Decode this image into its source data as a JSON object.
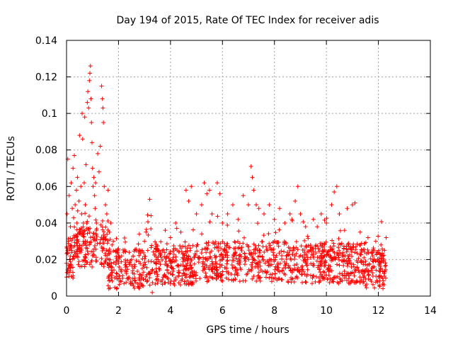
{
  "chart_data": {
    "type": "scatter",
    "title": "Day 194 of 2015, Rate Of TEC Index for receiver adis",
    "xlabel": "GPS time / hours",
    "ylabel": "ROTI / TECUs",
    "xlim": [
      0,
      14
    ],
    "ylim": [
      0,
      0.14
    ],
    "x_ticks": [
      0,
      2,
      4,
      6,
      8,
      10,
      12,
      14
    ],
    "x_tick_labels": [
      "0",
      "2",
      "4",
      "6",
      "8",
      "10",
      "12",
      "14"
    ],
    "y_ticks": [
      0,
      0.02,
      0.04,
      0.06,
      0.08,
      0.1,
      0.12,
      0.14
    ],
    "y_tick_labels": [
      "0",
      "0.02",
      "0.04",
      "0.06",
      "0.08",
      "0.1",
      "0.12",
      "0.14"
    ],
    "grid": true,
    "marker": "+",
    "marker_color": "#ff0000",
    "series": [
      {
        "name": "ROTI",
        "points": [
          [
            0.0,
            0.018
          ],
          [
            0.02,
            0.045
          ],
          [
            0.05,
            0.075
          ],
          [
            0.07,
            0.03
          ],
          [
            0.1,
            0.055
          ],
          [
            0.12,
            0.02
          ],
          [
            0.15,
            0.038
          ],
          [
            0.18,
            0.062
          ],
          [
            0.2,
            0.025
          ],
          [
            0.22,
            0.048
          ],
          [
            0.25,
            0.07
          ],
          [
            0.28,
            0.033
          ],
          [
            0.3,
            0.077
          ],
          [
            0.33,
            0.05
          ],
          [
            0.35,
            0.022
          ],
          [
            0.38,
            0.058
          ],
          [
            0.4,
            0.04
          ],
          [
            0.42,
            0.065
          ],
          [
            0.45,
            0.03
          ],
          [
            0.48,
            0.052
          ],
          [
            0.5,
            0.088
          ],
          [
            0.52,
            0.035
          ],
          [
            0.55,
            0.06
          ],
          [
            0.58,
            0.045
          ],
          [
            0.6,
            0.1
          ],
          [
            0.62,
            0.086
          ],
          [
            0.65,
            0.04
          ],
          [
            0.68,
            0.062
          ],
          [
            0.7,
            0.098
          ],
          [
            0.72,
            0.05
          ],
          [
            0.75,
            0.072
          ],
          [
            0.78,
            0.04
          ],
          [
            0.8,
            0.106
          ],
          [
            0.82,
            0.112
          ],
          [
            0.85,
            0.103
          ],
          [
            0.88,
            0.118
          ],
          [
            0.9,
            0.122
          ],
          [
            0.92,
            0.126
          ],
          [
            0.94,
            0.108
          ],
          [
            0.96,
            0.095
          ],
          [
            0.98,
            0.084
          ],
          [
            1.0,
            0.07
          ],
          [
            1.02,
            0.06
          ],
          [
            1.05,
            0.065
          ],
          [
            1.08,
            0.055
          ],
          [
            1.1,
            0.048
          ],
          [
            1.12,
            0.062
          ],
          [
            1.15,
            0.04
          ],
          [
            1.2,
            0.078
          ],
          [
            1.25,
            0.068
          ],
          [
            1.3,
            0.082
          ],
          [
            1.35,
            0.115
          ],
          [
            1.38,
            0.108
          ],
          [
            1.4,
            0.103
          ],
          [
            1.42,
            0.095
          ],
          [
            1.45,
            0.06
          ],
          [
            1.5,
            0.05
          ],
          [
            1.55,
            0.045
          ],
          [
            1.6,
            0.058
          ],
          [
            1.65,
            0.035
          ],
          [
            1.7,
            0.04
          ],
          [
            1.75,
            0.028
          ],
          [
            1.8,
            0.03
          ],
          [
            1.9,
            0.025
          ],
          [
            2.0,
            0.022
          ],
          [
            2.2,
            0.024
          ],
          [
            2.5,
            0.02
          ],
          [
            2.8,
            0.034
          ],
          [
            3.0,
            0.03
          ],
          [
            3.2,
            0.053
          ],
          [
            3.25,
            0.044
          ],
          [
            3.3,
            0.002
          ],
          [
            3.5,
            0.025
          ],
          [
            3.8,
            0.036
          ],
          [
            4.0,
            0.032
          ],
          [
            4.2,
            0.04
          ],
          [
            4.4,
            0.035
          ],
          [
            4.6,
            0.058
          ],
          [
            4.7,
            0.052
          ],
          [
            4.8,
            0.06
          ],
          [
            5.0,
            0.045
          ],
          [
            5.2,
            0.05
          ],
          [
            5.3,
            0.062
          ],
          [
            5.4,
            0.056
          ],
          [
            5.5,
            0.058
          ],
          [
            5.6,
            0.045
          ],
          [
            5.8,
            0.062
          ],
          [
            5.9,
            0.056
          ],
          [
            6.0,
            0.04
          ],
          [
            6.2,
            0.045
          ],
          [
            6.4,
            0.05
          ],
          [
            6.6,
            0.042
          ],
          [
            6.8,
            0.055
          ],
          [
            7.0,
            0.05
          ],
          [
            7.1,
            0.071
          ],
          [
            7.15,
            0.065
          ],
          [
            7.2,
            0.058
          ],
          [
            7.3,
            0.05
          ],
          [
            7.4,
            0.048
          ],
          [
            7.6,
            0.045
          ],
          [
            7.8,
            0.05
          ],
          [
            8.0,
            0.042
          ],
          [
            8.2,
            0.048
          ],
          [
            8.4,
            0.04
          ],
          [
            8.6,
            0.045
          ],
          [
            8.8,
            0.052
          ],
          [
            8.9,
            0.06
          ],
          [
            9.0,
            0.045
          ],
          [
            9.2,
            0.038
          ],
          [
            9.5,
            0.042
          ],
          [
            9.8,
            0.045
          ],
          [
            10.0,
            0.04
          ],
          [
            10.2,
            0.05
          ],
          [
            10.3,
            0.057
          ],
          [
            10.4,
            0.06
          ],
          [
            10.5,
            0.045
          ],
          [
            10.8,
            0.048
          ],
          [
            11.0,
            0.05
          ],
          [
            11.1,
            0.051
          ],
          [
            11.3,
            0.035
          ],
          [
            11.6,
            0.032
          ],
          [
            11.9,
            0.03
          ],
          [
            12.1,
            0.028
          ],
          [
            12.3,
            0.032
          ]
        ]
      }
    ]
  }
}
